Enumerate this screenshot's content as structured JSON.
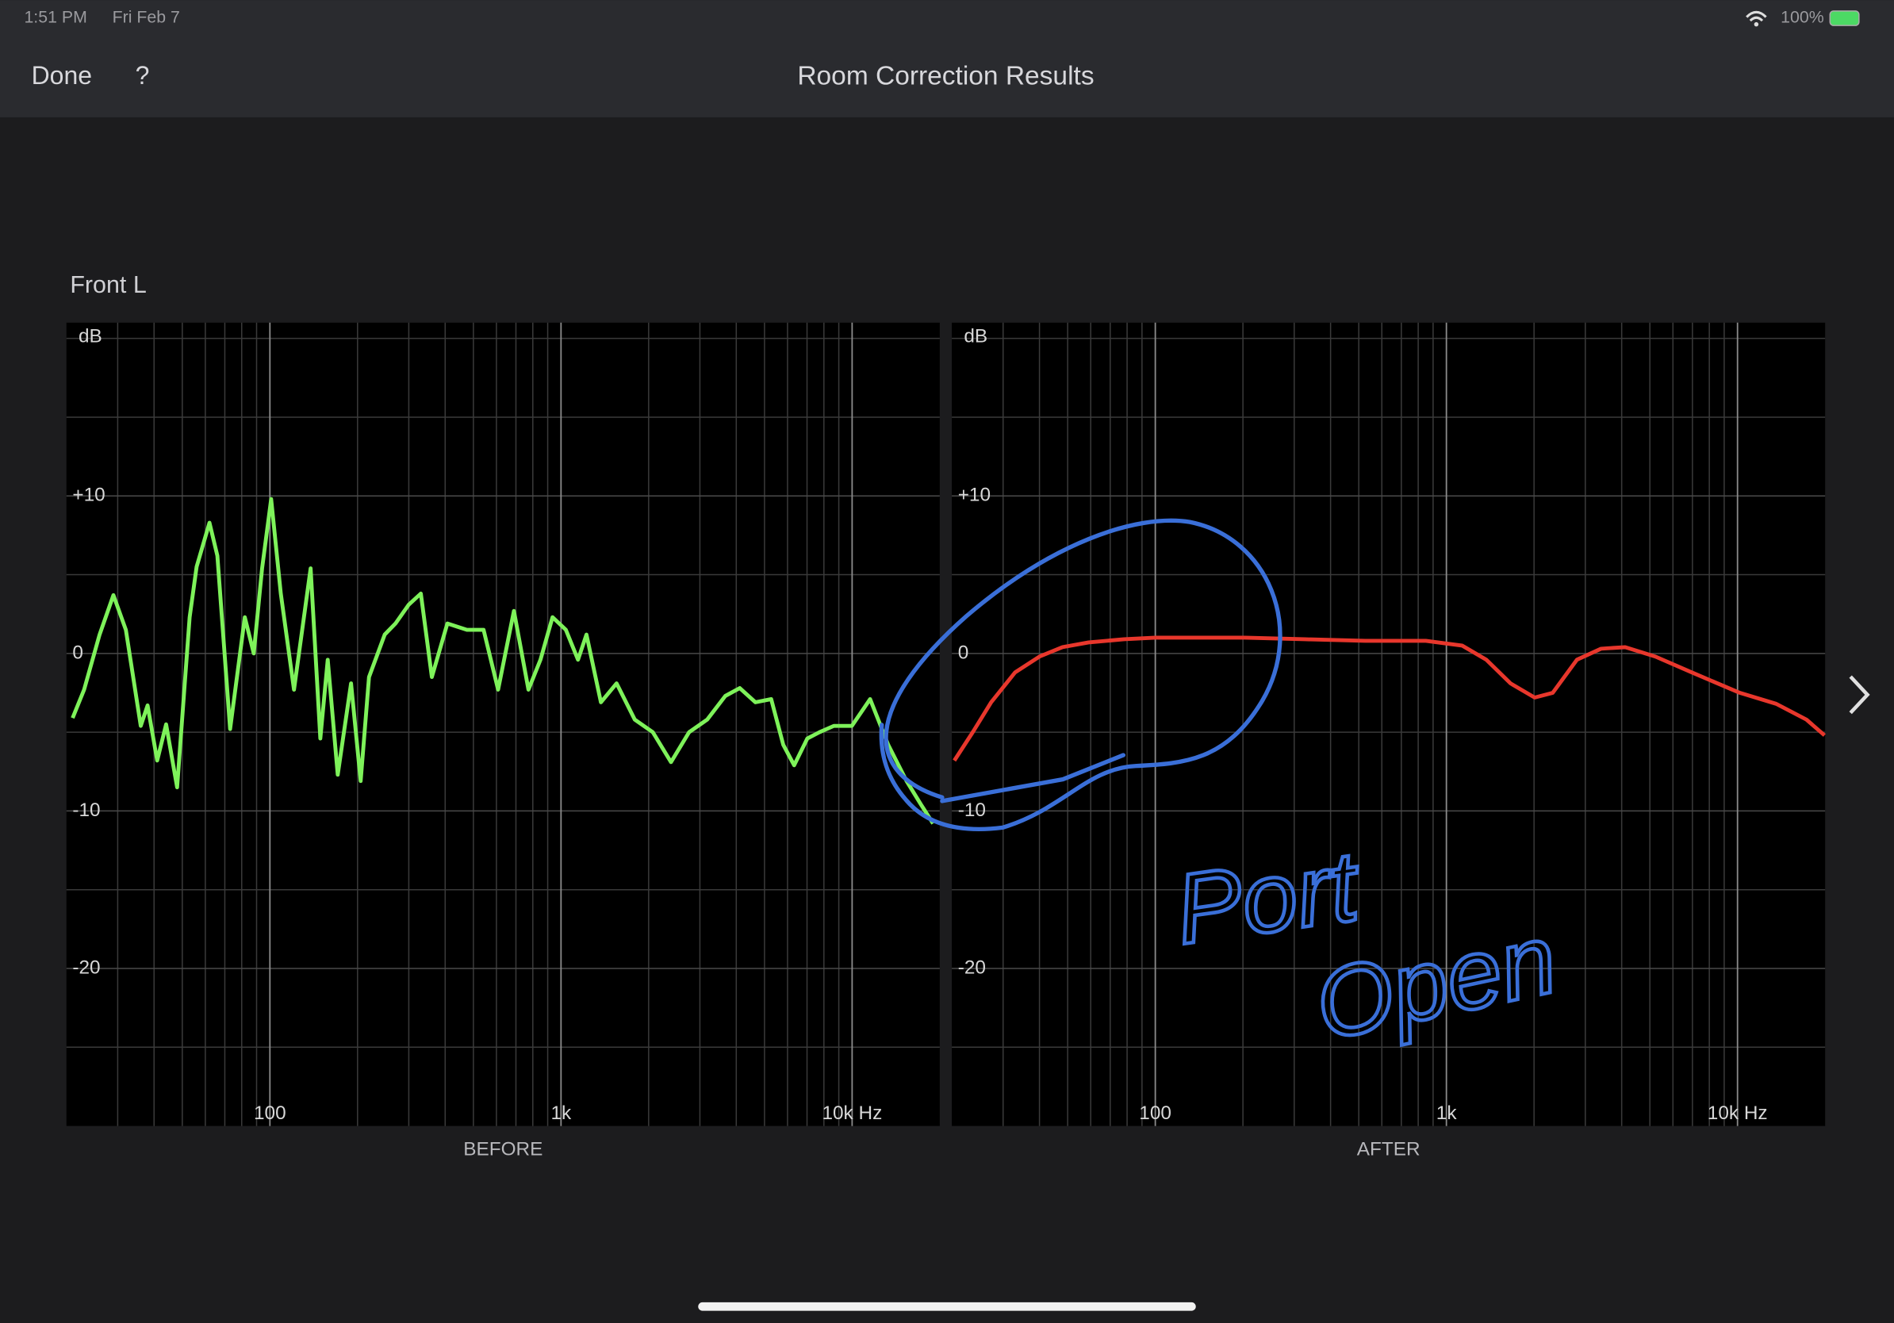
{
  "status_bar": {
    "time": "1:51 PM",
    "date": "Fri Feb 7",
    "battery": "100%"
  },
  "nav": {
    "done": "Done",
    "help": "?",
    "title": "Room Correction Results"
  },
  "channel": "Front L",
  "chart_data": [
    {
      "type": "line",
      "title": "BEFORE",
      "y_label": "dB",
      "x_scale": "log",
      "grid": true,
      "xlim": [
        20,
        20000
      ],
      "xticks": [
        {
          "value": 100,
          "label": "100"
        },
        {
          "value": 1000,
          "label": "1k"
        },
        {
          "value": 10000,
          "label": "10k Hz"
        }
      ],
      "xgrid": [
        30,
        40,
        50,
        60,
        70,
        80,
        90,
        200,
        300,
        400,
        500,
        600,
        700,
        800,
        900,
        2000,
        3000,
        4000,
        5000,
        6000,
        7000,
        8000,
        9000
      ],
      "ylim": [
        -30,
        21
      ],
      "yticks": [
        {
          "value": 10,
          "label": "+10"
        },
        0,
        -10,
        -20
      ],
      "ygrid": [
        -25,
        -15,
        -5,
        5,
        15,
        20
      ],
      "series": [
        {
          "color": "#7ef25a",
          "x": [
            21,
            23,
            26,
            29,
            32,
            36,
            38,
            41,
            44,
            48,
            53,
            56,
            62,
            66,
            73,
            82,
            88,
            94,
            101,
            109,
            121,
            138,
            149,
            158,
            171,
            190,
            205,
            219,
            248,
            270,
            300,
            330,
            360,
            407,
            475,
            542,
            608,
            689,
            773,
            850,
            935,
            1039,
            1144,
            1223,
            1371,
            1552,
            1792,
            2067,
            2387,
            2754,
            3178,
            3667,
            4113,
            4656,
            5272,
            5800,
            6322,
            7017,
            7725,
            8654,
            9984,
            11530,
            13300,
            15380,
            17250,
            18970
          ],
          "values": [
            -4.1,
            -2.3,
            1.2,
            3.7,
            1.5,
            -4.6,
            -3.3,
            -6.8,
            -4.5,
            -8.5,
            2.3,
            5.5,
            8.3,
            6.2,
            -4.8,
            2.3,
            0,
            5.4,
            9.8,
            3.8,
            -2.3,
            5.4,
            -5.4,
            -0.4,
            -7.7,
            -1.9,
            -8.1,
            -1.5,
            1.2,
            1.9,
            3.1,
            3.8,
            -1.5,
            1.9,
            1.5,
            1.5,
            -2.3,
            2.7,
            -2.3,
            -0.4,
            2.3,
            1.5,
            -0.4,
            1.2,
            -3.1,
            -1.9,
            -4.2,
            -5,
            -6.9,
            -5,
            -4.2,
            -2.7,
            -2.2,
            -3.1,
            -2.9,
            -5.8,
            -7.1,
            -5.4,
            -5,
            -4.6,
            -4.6,
            -2.9,
            -5.8,
            -8.1,
            -9.6,
            -10.8
          ]
        }
      ]
    },
    {
      "type": "line",
      "title": "AFTER",
      "y_label": "dB",
      "x_scale": "log",
      "grid": true,
      "xlim": [
        20,
        20000
      ],
      "xticks": [
        {
          "value": 100,
          "label": "100"
        },
        {
          "value": 1000,
          "label": "1k"
        },
        {
          "value": 10000,
          "label": "10k Hz"
        }
      ],
      "xgrid": [
        30,
        40,
        50,
        60,
        70,
        80,
        90,
        200,
        300,
        400,
        500,
        600,
        700,
        800,
        900,
        2000,
        3000,
        4000,
        5000,
        6000,
        7000,
        8000,
        9000
      ],
      "ylim": [
        -30,
        21
      ],
      "yticks": [
        {
          "value": 10,
          "label": "+10"
        },
        0,
        -10,
        -20
      ],
      "ygrid": [
        -25,
        -15,
        -5,
        5,
        15,
        20
      ],
      "annotation": [
        "Port",
        "Open"
      ],
      "series": [
        {
          "color": "#e8372c",
          "x": [
            20.4,
            23.6,
            27.3,
            33,
            40,
            48,
            59,
            78,
            100,
            138,
            203,
            327,
            527,
            850,
            1132,
            1371,
            1660,
            2010,
            2319,
            2807,
            3398,
            4113,
            5224,
            6954,
            10180,
            13580,
            17250,
            19900
          ],
          "values": [
            -6.8,
            -5,
            -3.1,
            -1.2,
            -0.2,
            0.4,
            0.7,
            0.9,
            1,
            1,
            1,
            0.9,
            0.8,
            0.8,
            0.5,
            -0.4,
            -1.9,
            -2.8,
            -2.5,
            -0.4,
            0.3,
            0.4,
            -0.2,
            -1.2,
            -2.5,
            -3.2,
            -4.2,
            -5.2
          ]
        }
      ]
    }
  ]
}
